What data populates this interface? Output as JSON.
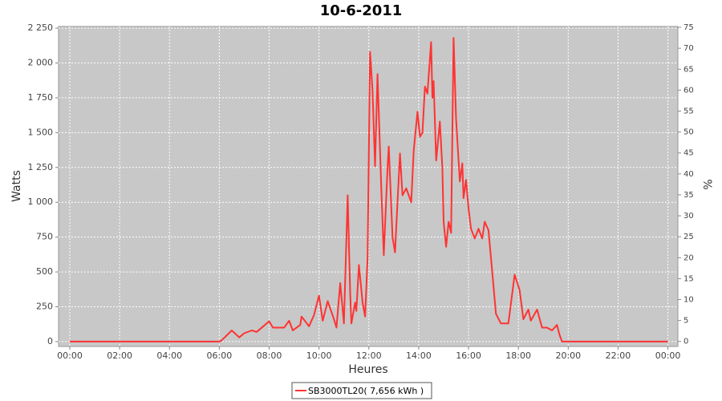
{
  "chart_data": {
    "type": "line",
    "title": "10-6-2011",
    "xlabel": "Heures",
    "ylabel": "Watts",
    "y2label": "%",
    "xlim": [
      -0.45,
      24.4
    ],
    "ylim": [
      -35,
      2262
    ],
    "y2lim": [
      -1.2,
      75.2
    ],
    "xticks": [
      {
        "value": 0,
        "label": "00:00"
      },
      {
        "value": 2,
        "label": "02:00"
      },
      {
        "value": 4,
        "label": "04:00"
      },
      {
        "value": 6,
        "label": "06:00"
      },
      {
        "value": 8,
        "label": "08:00"
      },
      {
        "value": 10,
        "label": "10:00"
      },
      {
        "value": 12,
        "label": "12:00"
      },
      {
        "value": 14,
        "label": "14:00"
      },
      {
        "value": 16,
        "label": "16:00"
      },
      {
        "value": 18,
        "label": "18:00"
      },
      {
        "value": 20,
        "label": "20:00"
      },
      {
        "value": 22,
        "label": "22:00"
      },
      {
        "value": 24,
        "label": "00:00"
      }
    ],
    "yticks": [
      0,
      250,
      500,
      750,
      {
        "value": 1000,
        "label": "1 000"
      },
      {
        "value": 1250,
        "label": "1 250"
      },
      {
        "value": 1500,
        "label": "1 500"
      },
      {
        "value": 1750,
        "label": "1 750"
      },
      {
        "value": 2000,
        "label": "2 000"
      },
      {
        "value": 2250,
        "label": "2 250"
      }
    ],
    "y2ticks": [
      0,
      5,
      10,
      15,
      20,
      25,
      30,
      35,
      40,
      45,
      50,
      55,
      60,
      65,
      70,
      75
    ],
    "grid": true,
    "x": [
      0,
      6.0,
      6.1,
      6.5,
      6.8,
      7.0,
      7.3,
      7.5,
      8.0,
      8.15,
      8.6,
      8.8,
      8.95,
      9.25,
      9.3,
      9.6,
      9.8,
      10.0,
      10.15,
      10.35,
      10.6,
      10.7,
      10.85,
      11.0,
      11.15,
      11.25,
      11.3,
      11.45,
      11.5,
      11.6,
      11.75,
      11.85,
      11.95,
      12.05,
      12.15,
      12.25,
      12.35,
      12.5,
      12.6,
      12.75,
      12.8,
      12.95,
      13.05,
      13.15,
      13.25,
      13.35,
      13.5,
      13.7,
      13.8,
      13.95,
      14.05,
      14.15,
      14.25,
      14.35,
      14.5,
      14.55,
      14.6,
      14.7,
      14.85,
      14.95,
      15.0,
      15.1,
      15.2,
      15.3,
      15.4,
      15.5,
      15.65,
      15.75,
      15.8,
      15.9,
      16.0,
      16.1,
      16.25,
      16.4,
      16.55,
      16.65,
      16.8,
      16.95,
      17.1,
      17.3,
      17.6,
      17.85,
      18.05,
      18.2,
      18.4,
      18.5,
      18.75,
      18.95,
      19.15,
      19.35,
      19.55,
      19.65,
      19.75,
      24
    ],
    "series": [
      {
        "name": "SB3000TL20( 7,656 kWh )",
        "color": "#ff3333",
        "values": [
          0,
          0,
          10,
          80,
          30,
          60,
          80,
          70,
          145,
          100,
          100,
          150,
          80,
          120,
          180,
          110,
          190,
          330,
          150,
          290,
          160,
          100,
          420,
          130,
          1050,
          350,
          130,
          280,
          220,
          550,
          280,
          180,
          600,
          2080,
          1800,
          1260,
          1920,
          1100,
          620,
          1250,
          1400,
          750,
          640,
          1000,
          1350,
          1050,
          1100,
          1000,
          1370,
          1650,
          1470,
          1500,
          1830,
          1780,
          2150,
          1750,
          1870,
          1300,
          1580,
          1250,
          860,
          680,
          860,
          780,
          2180,
          1600,
          1150,
          1280,
          1030,
          1160,
          960,
          810,
          740,
          810,
          740,
          860,
          800,
          500,
          200,
          130,
          130,
          480,
          370,
          160,
          230,
          150,
          230,
          100,
          100,
          80,
          120,
          50,
          0,
          0
        ]
      }
    ]
  }
}
